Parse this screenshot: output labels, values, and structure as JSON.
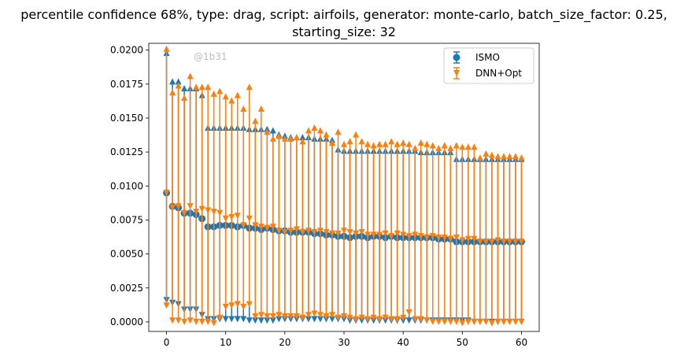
{
  "chart_data": {
    "type": "scatter",
    "title_line1": "percentile confidence 68%, type: drag, script: airfoils, generator: monte-carlo, batch_size_factor: 0.25,",
    "title_line2": "starting_size: 32",
    "watermark": "@1b31",
    "xlim": [
      -3,
      63
    ],
    "ylim": [
      -0.0007,
      0.0205
    ],
    "x_ticks": [
      0,
      10,
      20,
      30,
      40,
      50,
      60
    ],
    "y_ticks": [
      0.0,
      0.0025,
      0.005,
      0.0075,
      0.01,
      0.0125,
      0.015,
      0.0175,
      0.02
    ],
    "y_tick_labels": [
      "0.0000",
      "0.0025",
      "0.0050",
      "0.0075",
      "0.0100",
      "0.0125",
      "0.0150",
      "0.0175",
      "0.0200"
    ],
    "legend_position": "top-right",
    "series": [
      {
        "name": "ISMO",
        "color": "#1f77b4",
        "x": [
          0,
          1,
          2,
          3,
          4,
          5,
          6,
          7,
          8,
          9,
          10,
          11,
          12,
          13,
          14,
          15,
          16,
          17,
          18,
          19,
          20,
          21,
          22,
          23,
          24,
          25,
          26,
          27,
          28,
          29,
          30,
          31,
          32,
          33,
          34,
          35,
          36,
          37,
          38,
          39,
          40,
          41,
          42,
          43,
          44,
          45,
          46,
          47,
          48,
          49,
          50,
          51,
          52,
          53,
          54,
          55,
          56,
          57,
          58,
          59,
          60
        ],
        "y": [
          0.0095,
          0.0085,
          0.0084,
          0.008,
          0.008,
          0.0079,
          0.0076,
          0.007,
          0.007,
          0.0071,
          0.0071,
          0.0071,
          0.007,
          0.0071,
          0.0069,
          0.0069,
          0.0068,
          0.0069,
          0.0068,
          0.0067,
          0.0067,
          0.0066,
          0.0066,
          0.0066,
          0.0066,
          0.0065,
          0.0065,
          0.0064,
          0.0064,
          0.0063,
          0.0063,
          0.0062,
          0.0063,
          0.0063,
          0.0062,
          0.0063,
          0.0063,
          0.0062,
          0.0063,
          0.0062,
          0.0062,
          0.0062,
          0.0062,
          0.0062,
          0.0062,
          0.0062,
          0.0061,
          0.0061,
          0.0061,
          0.0059,
          0.0059,
          0.0059,
          0.0059,
          0.0059,
          0.0059,
          0.0059,
          0.0059,
          0.0059,
          0.0059,
          0.0059,
          0.0059
        ],
        "upper": [
          0.0198,
          0.0177,
          0.0177,
          0.0172,
          0.0172,
          0.0172,
          0.0167,
          0.0143,
          0.0143,
          0.0143,
          0.0143,
          0.0143,
          0.0143,
          0.0143,
          0.0142,
          0.0142,
          0.0142,
          0.0142,
          0.0141,
          0.0138,
          0.0137,
          0.0136,
          0.0136,
          0.0136,
          0.0136,
          0.0135,
          0.0135,
          0.0135,
          0.0134,
          0.0127,
          0.0126,
          0.0126,
          0.0126,
          0.0126,
          0.0126,
          0.0126,
          0.0126,
          0.0126,
          0.0126,
          0.0126,
          0.0126,
          0.0126,
          0.0126,
          0.0125,
          0.0125,
          0.0125,
          0.0125,
          0.0125,
          0.0125,
          0.012,
          0.012,
          0.012,
          0.012,
          0.012,
          0.012,
          0.012,
          0.012,
          0.012,
          0.012,
          0.012,
          0.012
        ],
        "lower": [
          0.0016,
          0.0014,
          0.0013,
          0.0009,
          0.0009,
          0.0009,
          0.0005,
          0.0002,
          0.0002,
          0.0002,
          0.0002,
          0.0002,
          0.0002,
          0.0002,
          0.0001,
          0.0001,
          0.0001,
          0.0001,
          0.0001,
          0.0002,
          0.0002,
          0.0002,
          0.0002,
          0.0002,
          0.0002,
          0.0002,
          0.0002,
          0.0002,
          0.0002,
          0.0002,
          0.0002,
          0.0001,
          0.0001,
          0.0001,
          0.0001,
          0.0001,
          0.0001,
          0.0001,
          0.0001,
          0.0001,
          0.0001,
          0.0001,
          0.0001,
          0.0001,
          0.0001,
          0.0001,
          0.0001,
          0.0001,
          0.0001,
          0.0001,
          0.0001,
          0.0001,
          0.0,
          0.0,
          0.0,
          0.0,
          0.0,
          0.0,
          0.0,
          0.0,
          0.0
        ]
      },
      {
        "name": "DNN+Opt",
        "color": "#ff7f0e",
        "x": [
          0,
          1,
          2,
          3,
          4,
          5,
          6,
          7,
          8,
          9,
          10,
          11,
          12,
          13,
          14,
          15,
          16,
          17,
          18,
          19,
          20,
          21,
          22,
          23,
          24,
          25,
          26,
          27,
          28,
          29,
          30,
          31,
          32,
          33,
          34,
          35,
          36,
          37,
          38,
          39,
          40,
          41,
          42,
          43,
          44,
          45,
          46,
          47,
          48,
          49,
          50,
          51,
          52,
          53,
          54,
          55,
          56,
          57,
          58,
          59,
          60
        ],
        "y": [
          0.0095,
          0.0084,
          0.0085,
          0.008,
          0.0085,
          0.0081,
          0.0083,
          0.0082,
          0.0081,
          0.008,
          0.0076,
          0.0077,
          0.0078,
          0.0071,
          0.0076,
          0.0071,
          0.007,
          0.0069,
          0.007,
          0.0067,
          0.0066,
          0.0067,
          0.0068,
          0.0066,
          0.0067,
          0.0066,
          0.0067,
          0.0066,
          0.0065,
          0.0065,
          0.0067,
          0.0066,
          0.0065,
          0.0066,
          0.0064,
          0.0064,
          0.0064,
          0.0065,
          0.0063,
          0.0065,
          0.0064,
          0.0063,
          0.0064,
          0.0063,
          0.0062,
          0.0063,
          0.0062,
          0.0062,
          0.0061,
          0.0062,
          0.006,
          0.0061,
          0.0061,
          0.0059,
          0.0059,
          0.0059,
          0.006,
          0.0059,
          0.0059,
          0.0059,
          0.0059
        ],
        "upper": [
          0.0201,
          0.0169,
          0.0174,
          0.0165,
          0.0181,
          0.0173,
          0.0173,
          0.0173,
          0.0168,
          0.017,
          0.0166,
          0.0163,
          0.0167,
          0.0157,
          0.0173,
          0.0148,
          0.0157,
          0.014,
          0.0135,
          0.0137,
          0.0135,
          0.0135,
          0.0136,
          0.0133,
          0.0141,
          0.0143,
          0.0141,
          0.0138,
          0.0132,
          0.014,
          0.0131,
          0.0133,
          0.0138,
          0.0133,
          0.0131,
          0.013,
          0.0131,
          0.0131,
          0.0133,
          0.0131,
          0.0132,
          0.0131,
          0.0128,
          0.0132,
          0.0131,
          0.013,
          0.0128,
          0.013,
          0.0128,
          0.013,
          0.0129,
          0.0129,
          0.0129,
          0.0121,
          0.0124,
          0.0123,
          0.0122,
          0.0122,
          0.0122,
          0.0122,
          0.0121
        ],
        "lower": [
          0.0012,
          0.0001,
          0.0001,
          0.0,
          0.0001,
          0.0,
          0.0,
          0.0,
          -0.0001,
          0.0003,
          0.0011,
          0.0012,
          0.0013,
          0.0011,
          0.0013,
          0.0004,
          0.0005,
          0.0004,
          0.0004,
          0.0005,
          0.0004,
          0.0004,
          0.0004,
          0.0003,
          0.0005,
          0.0006,
          0.0005,
          0.0004,
          0.0005,
          0.0003,
          0.0004,
          0.0003,
          0.0002,
          0.0003,
          0.0002,
          0.0003,
          0.0002,
          0.0003,
          0.0002,
          0.0002,
          0.0003,
          0.0007,
          0.0002,
          0.0002,
          0.0001,
          0.0,
          0.0,
          0.0,
          0.0,
          0.0,
          -0.0001,
          0.0,
          0.0,
          0.0,
          0.0,
          -0.0001,
          0.0,
          0.0,
          0.0,
          0.0,
          0.0
        ]
      }
    ]
  }
}
